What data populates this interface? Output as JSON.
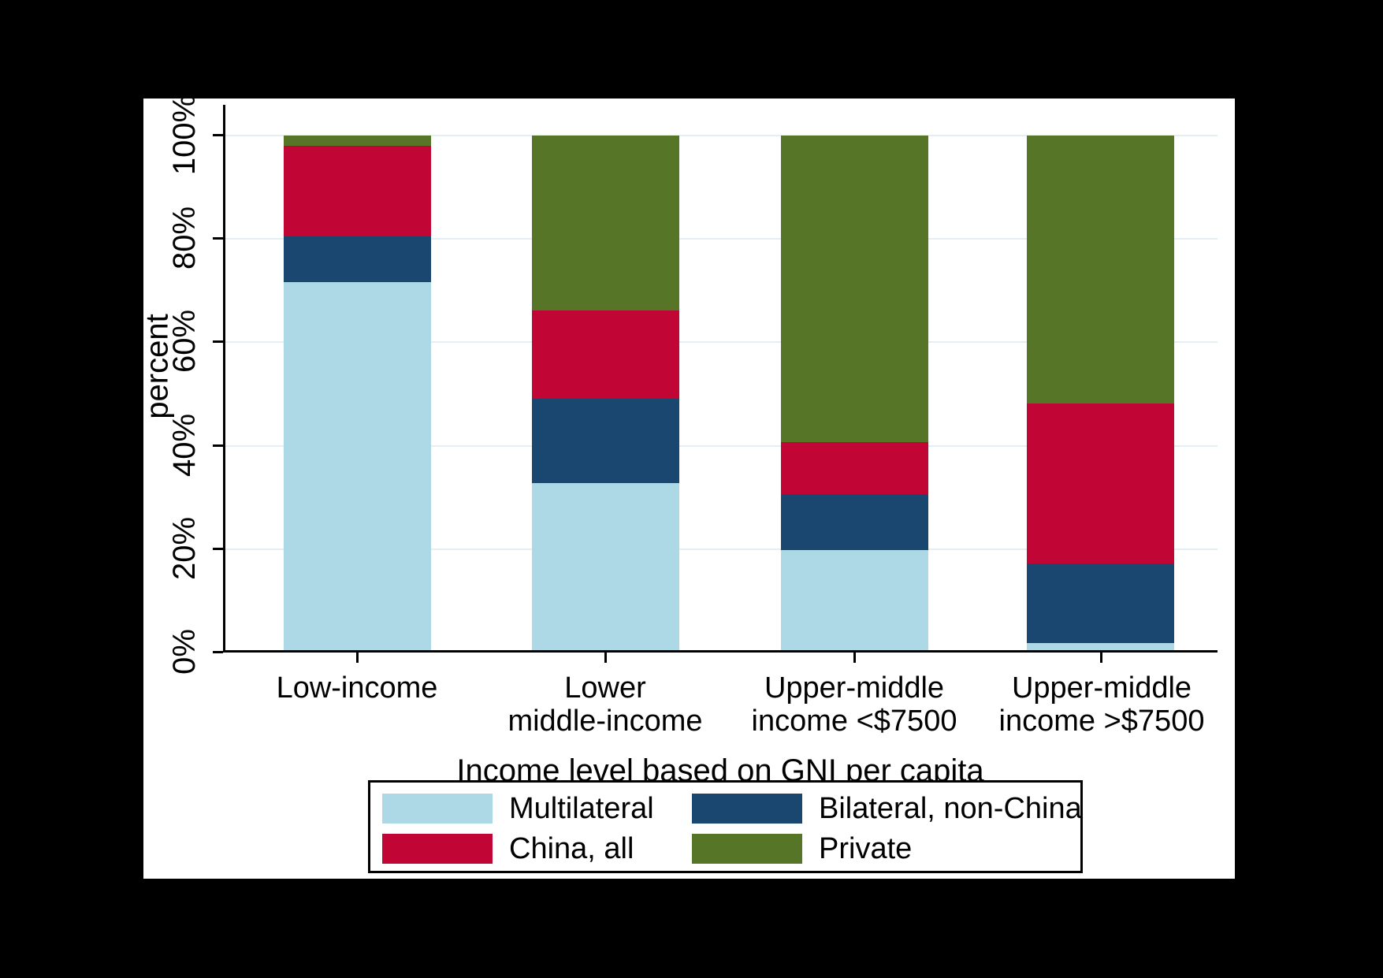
{
  "colors": {
    "background": "#000000",
    "panel": "#ffffff",
    "gridline": "#e4eff4",
    "axis": "#000000",
    "multilateral": "#add8e6",
    "bilateral_non_china": "#1a476f",
    "china_all": "#c10534",
    "private": "#567527"
  },
  "chart_data": {
    "type": "bar",
    "subtype": "stacked-percent-vertical",
    "title": "",
    "xlabel": "Income level based on GNI per capita",
    "ylabel": "percent",
    "ylim": [
      0,
      100
    ],
    "grid": "horizontal",
    "y_ticks": [
      "0%",
      "20%",
      "40%",
      "60%",
      "80%",
      "100%"
    ],
    "categories": [
      {
        "line1": "Low-income",
        "line2": ""
      },
      {
        "line1": "Lower",
        "line2": "middle-income"
      },
      {
        "line1": "Upper-middle",
        "line2": "income <$7500"
      },
      {
        "line1": "Upper-middle",
        "line2": "income >$7500"
      }
    ],
    "series": [
      {
        "name": "Multilateral",
        "color": "#add8e6",
        "values": [
          71.5,
          32.5,
          19.5,
          1.5
        ]
      },
      {
        "name": "Bilateral, non-China",
        "color": "#1a476f",
        "values": [
          9.0,
          16.5,
          11.0,
          15.5
        ]
      },
      {
        "name": "China, all",
        "color": "#c10534",
        "values": [
          17.5,
          17.0,
          10.0,
          31.0
        ]
      },
      {
        "name": "Private",
        "color": "#567527",
        "values": [
          2.0,
          34.0,
          59.5,
          52.0
        ]
      }
    ],
    "stack_order_bottom_to_top": [
      "Multilateral",
      "Bilateral, non-China",
      "China, all",
      "Private"
    ],
    "legend_position": "bottom"
  },
  "legend": {
    "items": [
      {
        "label": "Multilateral",
        "color": "#add8e6"
      },
      {
        "label": "Bilateral, non-China",
        "color": "#1a476f"
      },
      {
        "label": "China, all",
        "color": "#c10534"
      },
      {
        "label": "Private",
        "color": "#567527"
      }
    ]
  }
}
